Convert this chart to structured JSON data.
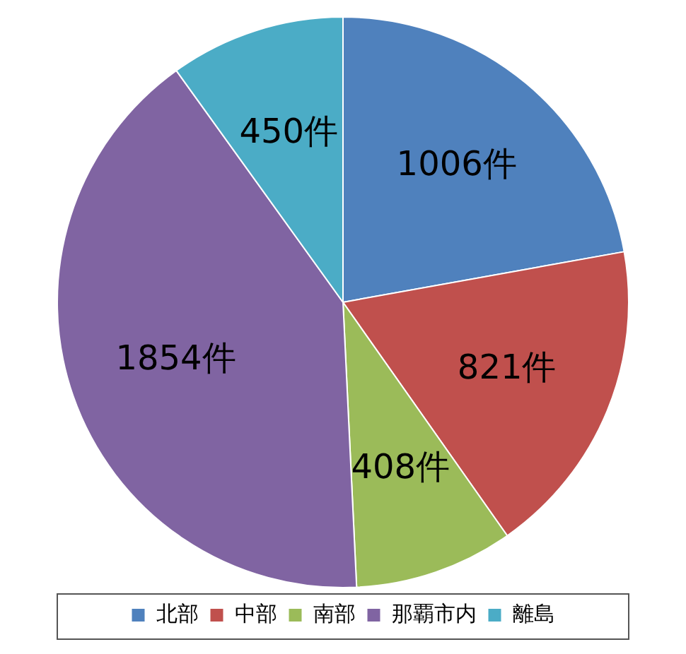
{
  "chart_data": {
    "type": "pie",
    "categories": [
      "北部",
      "中部",
      "南部",
      "那覇市内",
      "離島"
    ],
    "values": [
      1006,
      821,
      408,
      1854,
      450
    ],
    "value_labels": [
      "1006件",
      "821件",
      "408件",
      "1854件",
      "450件"
    ],
    "colors": [
      "#4f81bd",
      "#c0504d",
      "#9bbb59",
      "#8064a2",
      "#4bacc6"
    ],
    "legend": "bottom"
  }
}
